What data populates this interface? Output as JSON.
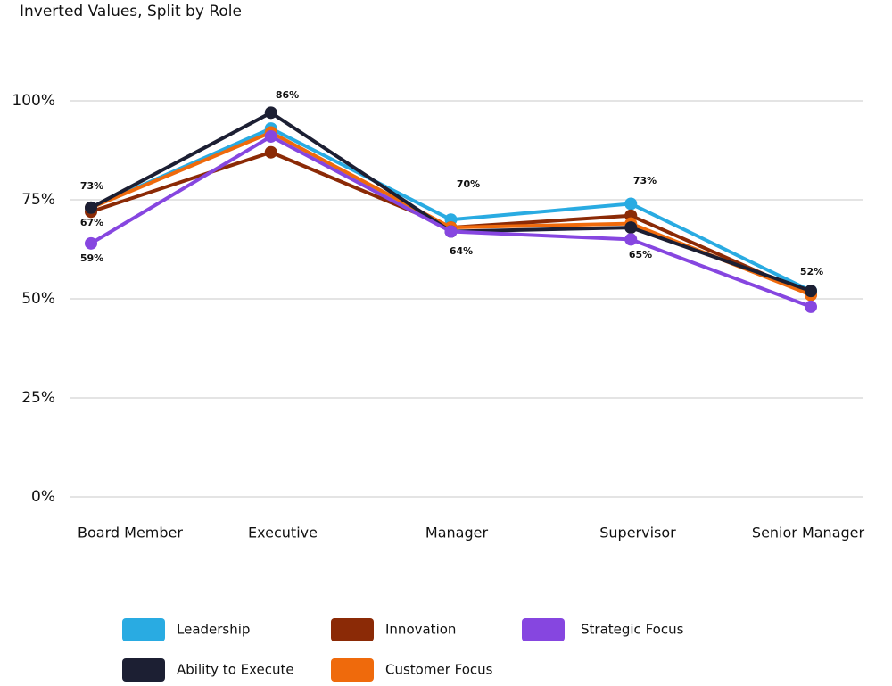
{
  "chart_data": {
    "type": "line",
    "title": "Inverted Values, Split by Role",
    "categories": [
      "Board Member",
      "Executive",
      "Manager",
      "Supervisor",
      "Senior Manager"
    ],
    "series": [
      {
        "name": "Leadership",
        "color": "#29abe2",
        "values": [
          73,
          93,
          70,
          74,
          52
        ]
      },
      {
        "name": "Innovation",
        "color": "#8b2a06",
        "values": [
          72,
          87,
          68,
          71,
          51
        ]
      },
      {
        "name": "Strategic Focus",
        "color": "#8646e0",
        "values": [
          64,
          91,
          67,
          65,
          48
        ]
      },
      {
        "name": "Ability to Execute",
        "color": "#1c1f33",
        "values": [
          73,
          97,
          67,
          68,
          52
        ]
      },
      {
        "name": "Customer Focus",
        "color": "#ef6a0c",
        "values": [
          73,
          92,
          68,
          69,
          51
        ]
      }
    ],
    "annotations": [
      "73%",
      "67%",
      "59%",
      "86%",
      "70%",
      "64%",
      "73%",
      "65%",
      "52%"
    ],
    "ylim": [
      0,
      100
    ],
    "yticks": [
      {
        "value": 0,
        "label": "0%"
      },
      {
        "value": 25,
        "label": "25%"
      },
      {
        "value": 50,
        "label": "50%"
      },
      {
        "value": 75,
        "label": "75%"
      },
      {
        "value": 100,
        "label": "100%"
      }
    ],
    "grid": true
  }
}
